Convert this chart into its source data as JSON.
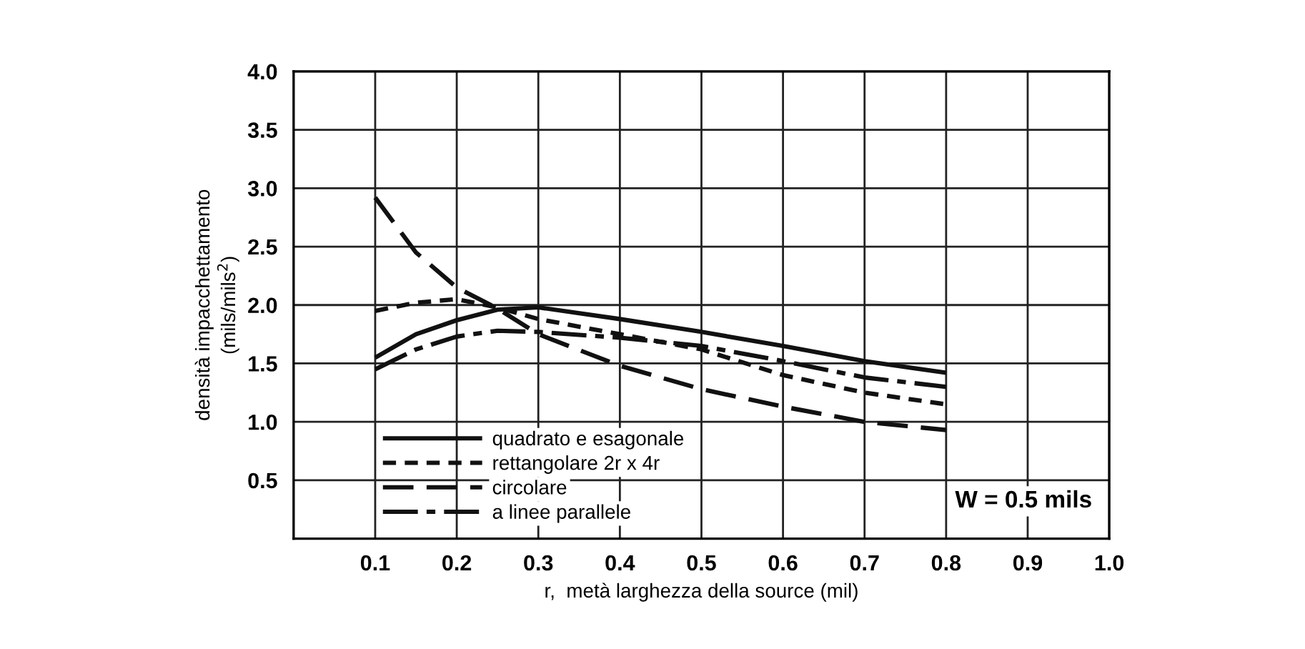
{
  "chart_data": {
    "type": "line",
    "xlabel": "r,  metà larghezza della source (mil)",
    "ylabel": "densità impacchettamento\n(mils/mils$^{2}$)",
    "x": [
      0.1,
      0.15,
      0.2,
      0.25,
      0.3,
      0.4,
      0.5,
      0.6,
      0.7,
      0.8
    ],
    "series": [
      {
        "name": "quadrato e esagonale",
        "color": "#111111",
        "line_style": "solid",
        "values": [
          1.55,
          1.75,
          1.87,
          1.96,
          1.98,
          1.88,
          1.77,
          1.65,
          1.52,
          1.42
        ]
      },
      {
        "name": "rettangolare 2r x 4r",
        "color": "#111111",
        "line_style": "dotted",
        "values": [
          1.95,
          2.02,
          2.05,
          1.98,
          1.88,
          1.75,
          1.62,
          1.4,
          1.25,
          1.15
        ]
      },
      {
        "name": "circolare",
        "color": "#111111",
        "line_style": "dashed",
        "values": [
          2.92,
          2.45,
          2.15,
          1.97,
          1.75,
          1.48,
          1.28,
          1.13,
          1.0,
          0.93
        ]
      },
      {
        "name": "a linee parallele",
        "color": "#111111",
        "line_style": "dashdot",
        "values": [
          1.45,
          1.62,
          1.73,
          1.78,
          1.77,
          1.72,
          1.65,
          1.52,
          1.38,
          1.3
        ]
      }
    ],
    "xlim": [
      0,
      1.0
    ],
    "xticks": [
      0.1,
      0.2,
      0.3,
      0.4,
      0.5,
      0.6,
      0.7,
      0.8,
      0.9,
      {
        "value": 1,
        "label": "1.0"
      }
    ],
    "ylim": [
      0,
      4.0
    ],
    "yticks": [
      0.5,
      {
        "value": 1,
        "label": "1.0"
      },
      1.5,
      {
        "value": 2,
        "label": "2.0"
      },
      2.5,
      {
        "value": 3,
        "label": "3.0"
      },
      3.5,
      {
        "value": 4,
        "label": "4.0"
      }
    ],
    "grid": true,
    "legend": "bottom left",
    "marker": "none",
    "annotations": [
      "W = 0.5 mils"
    ]
  }
}
